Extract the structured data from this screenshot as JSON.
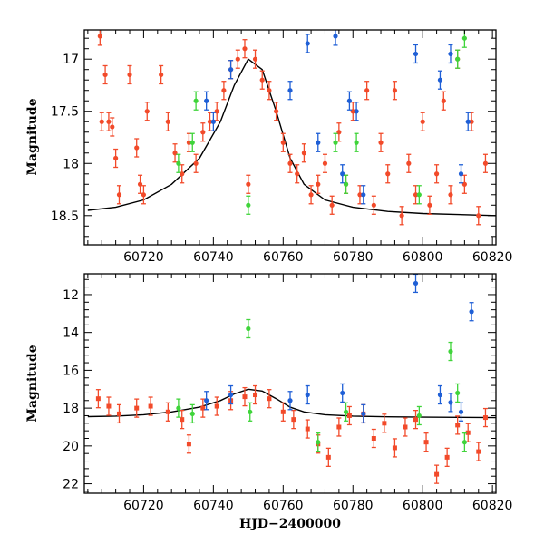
{
  "chart_data": [
    {
      "type": "scatter",
      "xlabel": "",
      "ylabel": "Magnitude",
      "xlim": [
        60703,
        60821
      ],
      "ylim": [
        18.78,
        16.72
      ],
      "y_inverted": true,
      "xticks": [
        60720,
        60740,
        60760,
        60780,
        60800,
        60820
      ],
      "xtick_labels": [
        "60720",
        "60740",
        "60760",
        "60780",
        "60800",
        "60820"
      ],
      "yticks": [
        17,
        17.5,
        18,
        18.5
      ],
      "ytick_labels": [
        "17",
        "17.5",
        "18",
        "18.5"
      ],
      "series": [
        {
          "color": "#f24a2a",
          "marker": "circle",
          "points": [
            [
              60707.5,
              16.78
            ],
            [
              60708,
              17.6
            ],
            [
              60709,
              17.15
            ],
            [
              60710,
              17.6
            ],
            [
              60711,
              17.65
            ],
            [
              60712,
              17.95
            ],
            [
              60713,
              18.3
            ],
            [
              60716,
              17.15
            ],
            [
              60718,
              17.85
            ],
            [
              60719,
              18.2
            ],
            [
              60720,
              18.3
            ],
            [
              60721,
              17.5
            ],
            [
              60725,
              17.15
            ],
            [
              60727,
              17.6
            ],
            [
              60729,
              17.9
            ],
            [
              60731,
              18.1
            ],
            [
              60733,
              17.8
            ],
            [
              60735,
              18.0
            ],
            [
              60737,
              17.7
            ],
            [
              60739,
              17.6
            ],
            [
              60741,
              17.5
            ],
            [
              60743,
              17.3
            ],
            [
              60745,
              17.1
            ],
            [
              60747,
              17.0
            ],
            [
              60749,
              16.9
            ],
            [
              60750,
              18.2
            ],
            [
              60752,
              17.0
            ],
            [
              60754,
              17.2
            ],
            [
              60756,
              17.3
            ],
            [
              60758,
              17.5
            ],
            [
              60760,
              17.8
            ],
            [
              60762,
              18.0
            ],
            [
              60764,
              18.1
            ],
            [
              60766,
              17.9
            ],
            [
              60768,
              18.3
            ],
            [
              60770,
              18.2
            ],
            [
              60772,
              18.0
            ],
            [
              60774,
              18.4
            ],
            [
              60776,
              17.7
            ],
            [
              60778,
              18.2
            ],
            [
              60780,
              17.5
            ],
            [
              60782,
              18.3
            ],
            [
              60784,
              17.3
            ],
            [
              60786,
              18.4
            ],
            [
              60788,
              17.8
            ],
            [
              60790,
              18.1
            ],
            [
              60792,
              17.3
            ],
            [
              60794,
              18.5
            ],
            [
              60796,
              18.0
            ],
            [
              60798,
              18.3
            ],
            [
              60800,
              17.6
            ],
            [
              60802,
              18.4
            ],
            [
              60804,
              18.1
            ],
            [
              60806,
              17.4
            ],
            [
              60808,
              18.3
            ],
            [
              60810,
              17.0
            ],
            [
              60812,
              18.2
            ],
            [
              60814,
              17.6
            ],
            [
              60816,
              18.5
            ],
            [
              60818,
              18.0
            ]
          ]
        },
        {
          "color": "#1f5fd6",
          "marker": "circle",
          "points": [
            [
              60738,
              17.4
            ],
            [
              60740,
              17.6
            ],
            [
              60745,
              17.1
            ],
            [
              60762,
              17.3
            ],
            [
              60767,
              16.85
            ],
            [
              60770,
              17.8
            ],
            [
              60775,
              16.78
            ],
            [
              60777,
              18.1
            ],
            [
              60779,
              17.4
            ],
            [
              60781,
              17.5
            ],
            [
              60783,
              18.3
            ],
            [
              60798,
              16.95
            ],
            [
              60805,
              17.2
            ],
            [
              60808,
              16.95
            ],
            [
              60811,
              18.1
            ],
            [
              60813,
              17.6
            ]
          ]
        },
        {
          "color": "#3fd43a",
          "marker": "circle",
          "points": [
            [
              60730,
              18.0
            ],
            [
              60734,
              17.8
            ],
            [
              60735,
              17.4
            ],
            [
              60750,
              18.4
            ],
            [
              60775,
              17.8
            ],
            [
              60778,
              18.2
            ],
            [
              60781,
              17.8
            ],
            [
              60799,
              18.3
            ],
            [
              60810,
              17.0
            ],
            [
              60812,
              16.8
            ]
          ]
        }
      ],
      "model_curve": [
        [
          60704,
          18.45
        ],
        [
          60712,
          18.42
        ],
        [
          60720,
          18.35
        ],
        [
          60728,
          18.2
        ],
        [
          60736,
          17.95
        ],
        [
          60742,
          17.6
        ],
        [
          60746,
          17.25
        ],
        [
          60750,
          17.0
        ],
        [
          60754,
          17.1
        ],
        [
          60758,
          17.5
        ],
        [
          60762,
          17.95
        ],
        [
          60766,
          18.2
        ],
        [
          60772,
          18.35
        ],
        [
          60780,
          18.42
        ],
        [
          60790,
          18.46
        ],
        [
          60800,
          18.48
        ],
        [
          60810,
          18.49
        ],
        [
          60821,
          18.5
        ]
      ]
    },
    {
      "type": "scatter",
      "xlabel": "HJD−2400000",
      "ylabel": "Magnitude",
      "xlim": [
        60703,
        60821
      ],
      "ylim": [
        22.5,
        10.9
      ],
      "y_inverted": true,
      "xticks": [
        60720,
        60740,
        60760,
        60780,
        60800,
        60820
      ],
      "xtick_labels": [
        "60720",
        "60740",
        "60760",
        "60780",
        "60800",
        "60820"
      ],
      "yticks": [
        12,
        14,
        16,
        18,
        20,
        22
      ],
      "ytick_labels": [
        "12",
        "14",
        "16",
        "18",
        "20",
        "22"
      ],
      "series": [
        {
          "color": "#f24a2a",
          "marker": "square",
          "points": [
            [
              60707,
              17.5
            ],
            [
              60710,
              17.9
            ],
            [
              60713,
              18.3
            ],
            [
              60718,
              18.0
            ],
            [
              60722,
              17.9
            ],
            [
              60727,
              18.2
            ],
            [
              60731,
              18.6
            ],
            [
              60733,
              19.9
            ],
            [
              60737,
              18.0
            ],
            [
              60741,
              17.9
            ],
            [
              60745,
              17.6
            ],
            [
              60749,
              17.4
            ],
            [
              60752,
              17.3
            ],
            [
              60756,
              17.5
            ],
            [
              60760,
              18.2
            ],
            [
              60763,
              18.6
            ],
            [
              60767,
              19.1
            ],
            [
              60770,
              19.9
            ],
            [
              60773,
              20.6
            ],
            [
              60776,
              19.0
            ],
            [
              60779,
              18.4
            ],
            [
              60783,
              18.3
            ],
            [
              60786,
              19.6
            ],
            [
              60789,
              18.8
            ],
            [
              60792,
              20.1
            ],
            [
              60795,
              19.0
            ],
            [
              60798,
              18.6
            ],
            [
              60801,
              19.8
            ],
            [
              60804,
              21.5
            ],
            [
              60807,
              20.6
            ],
            [
              60810,
              18.9
            ],
            [
              60813,
              19.3
            ],
            [
              60816,
              20.3
            ],
            [
              60818,
              18.5
            ]
          ]
        },
        {
          "color": "#1f5fd6",
          "marker": "circle",
          "points": [
            [
              60738,
              17.6
            ],
            [
              60745,
              17.3
            ],
            [
              60762,
              17.6
            ],
            [
              60767,
              17.3
            ],
            [
              60777,
              17.2
            ],
            [
              60783,
              18.3
            ],
            [
              60798,
              11.4
            ],
            [
              60805,
              17.3
            ],
            [
              60808,
              17.7
            ],
            [
              60811,
              18.2
            ],
            [
              60814,
              12.9
            ]
          ]
        },
        {
          "color": "#3fd43a",
          "marker": "circle",
          "points": [
            [
              60730,
              18.0
            ],
            [
              60734,
              18.3
            ],
            [
              60750,
              13.8
            ],
            [
              60750.5,
              18.2
            ],
            [
              60770,
              19.8
            ],
            [
              60778,
              18.2
            ],
            [
              60799,
              18.4
            ],
            [
              60808,
              15.0
            ],
            [
              60810,
              17.2
            ],
            [
              60812,
              19.8
            ]
          ]
        }
      ],
      "model_curve": [
        [
          60704,
          18.45
        ],
        [
          60712,
          18.42
        ],
        [
          60720,
          18.35
        ],
        [
          60728,
          18.2
        ],
        [
          60736,
          17.95
        ],
        [
          60742,
          17.6
        ],
        [
          60746,
          17.25
        ],
        [
          60750,
          17.0
        ],
        [
          60754,
          17.1
        ],
        [
          60758,
          17.5
        ],
        [
          60762,
          17.95
        ],
        [
          60766,
          18.2
        ],
        [
          60772,
          18.35
        ],
        [
          60780,
          18.42
        ],
        [
          60790,
          18.46
        ],
        [
          60800,
          18.48
        ],
        [
          60810,
          18.49
        ],
        [
          60821,
          18.5
        ]
      ]
    }
  ]
}
